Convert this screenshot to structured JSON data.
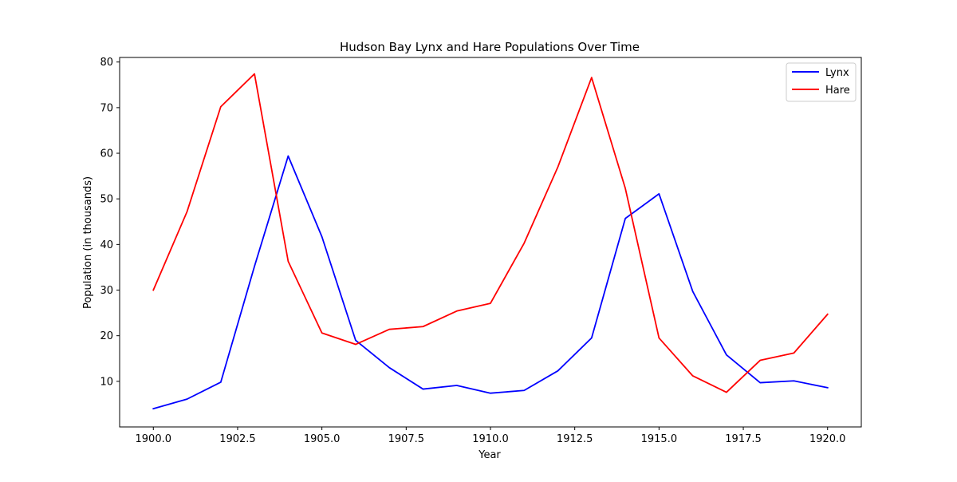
{
  "chart_data": {
    "type": "line",
    "title": "Hudson Bay Lynx and Hare Populations Over Time",
    "xlabel": "Year",
    "ylabel": "Population (in thousands)",
    "xlim": [
      1899,
      1921
    ],
    "ylim": [
      0,
      81
    ],
    "xticks": [
      1900.0,
      1902.5,
      1905.0,
      1907.5,
      1910.0,
      1912.5,
      1915.0,
      1917.5,
      1920.0
    ],
    "xtick_labels": [
      "1900.0",
      "1902.5",
      "1905.0",
      "1907.5",
      "1910.0",
      "1912.5",
      "1915.0",
      "1917.5",
      "1920.0"
    ],
    "yticks": [
      10,
      20,
      30,
      40,
      50,
      60,
      70,
      80
    ],
    "ytick_labels": [
      "10",
      "20",
      "30",
      "40",
      "50",
      "60",
      "70",
      "80"
    ],
    "grid": false,
    "legend": "top-right",
    "x": [
      1900,
      1901,
      1902,
      1903,
      1904,
      1905,
      1906,
      1907,
      1908,
      1909,
      1910,
      1911,
      1912,
      1913,
      1914,
      1915,
      1916,
      1917,
      1918,
      1919,
      1920
    ],
    "series": [
      {
        "name": "Lynx",
        "color": "#0000ff",
        "values": [
          4.0,
          6.1,
          9.8,
          35.2,
          59.4,
          41.7,
          19.0,
          13.0,
          8.3,
          9.1,
          7.4,
          8.0,
          12.3,
          19.5,
          45.7,
          51.1,
          29.7,
          15.8,
          9.7,
          10.1,
          8.6
        ]
      },
      {
        "name": "Hare",
        "color": "#ff0000",
        "values": [
          30.0,
          47.2,
          70.2,
          77.4,
          36.3,
          20.6,
          18.1,
          21.4,
          22.0,
          25.4,
          27.1,
          40.3,
          57.0,
          76.6,
          52.3,
          19.5,
          11.2,
          7.6,
          14.6,
          16.2,
          24.7
        ]
      }
    ]
  }
}
